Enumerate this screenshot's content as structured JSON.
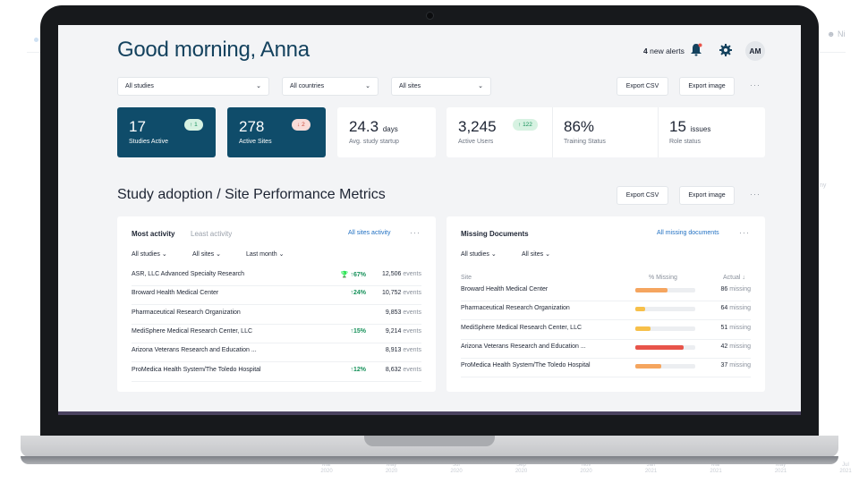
{
  "background": {
    "user_label": "Ni",
    "ticks": [
      {
        "m": "Mar",
        "y": "2020"
      },
      {
        "m": "May",
        "y": "2020"
      },
      {
        "m": "Jul",
        "y": "2020"
      },
      {
        "m": "Sep",
        "y": "2020"
      },
      {
        "m": "Nov",
        "y": "2020"
      },
      {
        "m": "Jan",
        "y": "2021"
      },
      {
        "m": "Mar",
        "y": "2021"
      },
      {
        "m": "May",
        "y": "2021"
      },
      {
        "m": "Jul",
        "y": "2021"
      }
    ]
  },
  "header": {
    "greeting": "Good morning, Anna",
    "alerts_count": "4",
    "alerts_label": "new alerts",
    "avatar_initials": "AM",
    "bell_icon": "bell-icon",
    "gear_icon": "gear-icon"
  },
  "filters": {
    "studies": "All studies",
    "countries": "All countries",
    "sites": "All sites",
    "export_csv": "Export CSV",
    "export_image": "Export image",
    "more": "···"
  },
  "kpis": {
    "studies_active": {
      "value": "17",
      "label": "Studies Active",
      "delta": "1",
      "direction": "up"
    },
    "active_sites": {
      "value": "278",
      "label": "Active Sites",
      "delta": "2",
      "direction": "down"
    },
    "study_startup": {
      "value": "24.3",
      "unit": "days",
      "label": "Avg. study startup"
    },
    "active_users": {
      "value": "3,245",
      "label": "Active Users",
      "delta": "122",
      "direction": "up"
    },
    "training_status": {
      "value": "86%",
      "label": "Training Status"
    },
    "role_status": {
      "value": "15",
      "unit": "issues",
      "label": "Role status"
    }
  },
  "section": {
    "title": "Study adoption / Site Performance Metrics",
    "export_csv": "Export CSV",
    "export_image": "Export image",
    "more": "···"
  },
  "activity_card": {
    "tab_active": "Most activity",
    "tab_inactive": "Least activity",
    "link": "All sites activity",
    "more": "···",
    "filters": [
      "All studies",
      "All sites",
      "Last month"
    ],
    "rows": [
      {
        "name": "ASR, LLC Advanced Specialty Research",
        "pct": "67%",
        "trophy": true,
        "events": "12,506",
        "unit": "events"
      },
      {
        "name": "Broward Health Medical Center",
        "pct": "24%",
        "trophy": false,
        "events": "10,752",
        "unit": "events"
      },
      {
        "name": "Pharmaceutical Research Organization",
        "pct": "",
        "trophy": false,
        "events": "9,853",
        "unit": "events"
      },
      {
        "name": "MediSphere Medical Research Center, LLC",
        "pct": "15%",
        "trophy": false,
        "events": "9,214",
        "unit": "events"
      },
      {
        "name": "Arizona Veterans Research and Education ...",
        "pct": "",
        "trophy": false,
        "events": "8,913",
        "unit": "events"
      },
      {
        "name": "ProMedica Health System/The Toledo Hospital",
        "pct": "12%",
        "trophy": false,
        "events": "8,632",
        "unit": "events"
      }
    ]
  },
  "missing_card": {
    "title": "Missing Documents",
    "link": "All missing documents",
    "more": "···",
    "filters": [
      "All studies",
      "All sites"
    ],
    "col_site": "Site",
    "col_missing": "% Missing",
    "col_actual": "Actual ↓",
    "rows": [
      {
        "name": "Broward Health Medical Center",
        "fraction": 0.53,
        "color": "#f5a55f",
        "count": "86",
        "unit": "missing"
      },
      {
        "name": "Pharmaceutical Research Organization",
        "fraction": 0.17,
        "color": "#f7c04a",
        "count": "64",
        "unit": "missing"
      },
      {
        "name": "MediSphere Medical Research Center, LLC",
        "fraction": 0.25,
        "color": "#f7c04a",
        "count": "51",
        "unit": "missing"
      },
      {
        "name": "Arizona Veterans Research and Education ...",
        "fraction": 0.8,
        "color": "#e8544a",
        "count": "42",
        "unit": "missing"
      },
      {
        "name": "ProMedica Health System/The Toledo Hospital",
        "fraction": 0.44,
        "color": "#f5a55f",
        "count": "37",
        "unit": "missing"
      }
    ]
  }
}
